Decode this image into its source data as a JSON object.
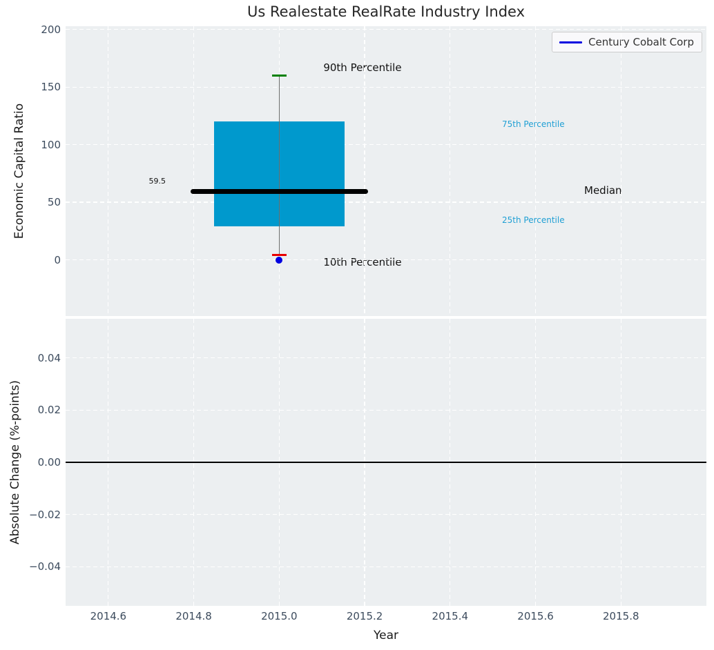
{
  "figure": {
    "title": "Us Realestate RealRate Industry Index"
  },
  "legend": {
    "label": "Century Cobalt Corp"
  },
  "colors": {
    "figure_bg": "#ffffff",
    "axes_bg": "#eceff1",
    "grid": "#ffffff",
    "box_fill": "#0099cd",
    "median_line": "#000000",
    "whisker": "#6e6e6e",
    "cap_90": "#008000",
    "cap_10": "#e80000",
    "company_marker": "#0000e0",
    "legend_line": "#0000e0",
    "tick_label": "#3c4b5d",
    "percentile_label_cyan": "#1f9fd4",
    "zero_line": "#000000"
  },
  "chart_data": [
    {
      "type": "boxplot",
      "title": "Us Realestate RealRate Industry Index",
      "ylabel": "Economic Capital Ratio",
      "xlabel": "",
      "x_center": 2015.0,
      "percentiles": {
        "p90": 160,
        "p75": 120,
        "median": 59.5,
        "p25": 29,
        "p10": 4
      },
      "median_value_label": "59.5",
      "series": [
        {
          "name": "Century Cobalt Corp",
          "x": [
            2015.0
          ],
          "y": [
            0
          ]
        }
      ],
      "annotations": {
        "p90": "90th Percentile",
        "p75": "75th Percentile",
        "median": "Median",
        "p25": "25th Percentile",
        "p10": "10th Percentile"
      },
      "xlim": [
        2014.5,
        2016.0
      ],
      "ylim": [
        -49,
        203
      ],
      "xticks": [
        2014.6,
        2014.8,
        2015.0,
        2015.2,
        2015.4,
        2015.6,
        2015.8
      ],
      "yticks": [
        0,
        50,
        100,
        150,
        200
      ],
      "grid": true,
      "legend_position": "upper right"
    },
    {
      "type": "line",
      "ylabel": "Absolute Change (%-points)",
      "xlabel": "Year",
      "series": [
        {
          "name": "Century Cobalt Corp",
          "x": [
            2015.0
          ],
          "y": [
            0.0
          ]
        }
      ],
      "xlim": [
        2014.5,
        2016.0
      ],
      "ylim": [
        -0.055,
        0.055
      ],
      "xticks": [
        2014.6,
        2014.8,
        2015.0,
        2015.2,
        2015.4,
        2015.6,
        2015.8
      ],
      "yticks": [
        0.04,
        0.02,
        0.0,
        -0.02,
        -0.04
      ],
      "zero_line": 0.0,
      "grid": true
    }
  ]
}
